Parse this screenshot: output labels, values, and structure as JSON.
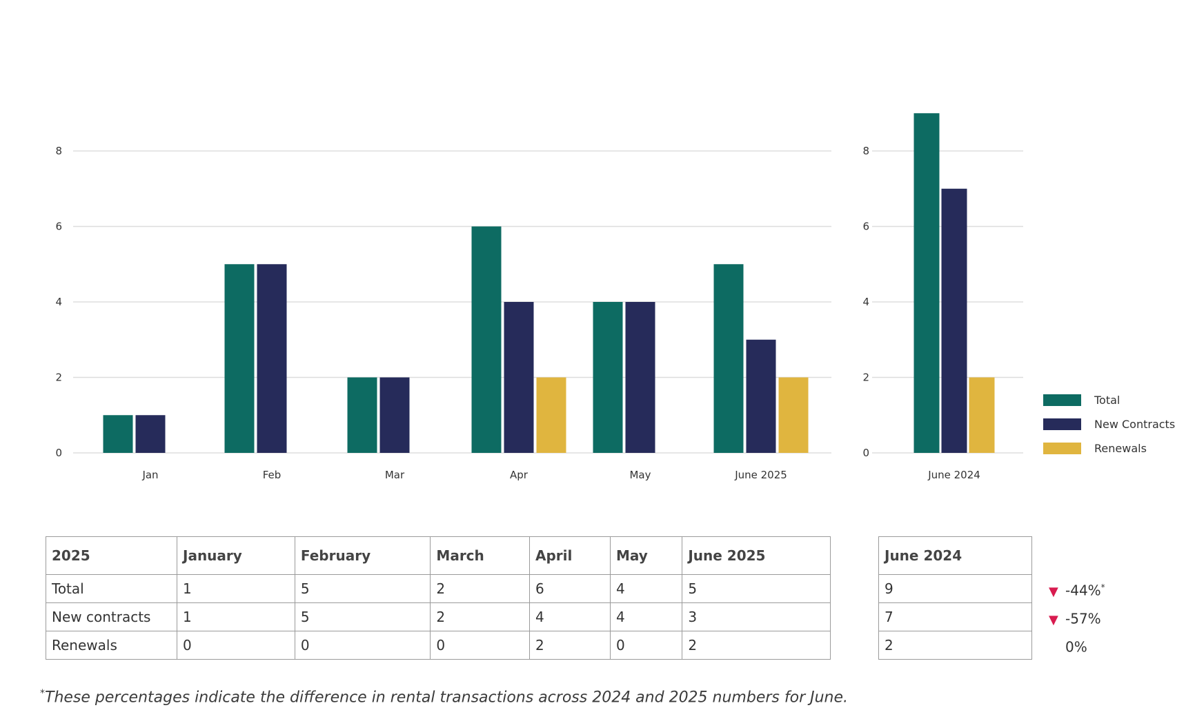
{
  "chart_data": [
    {
      "type": "bar",
      "categories": [
        "Jan",
        "Feb",
        "Mar",
        "Apr",
        "May",
        "June 2025"
      ],
      "series": [
        {
          "name": "Total",
          "color": "#0d6b62",
          "values": [
            1,
            5,
            2,
            6,
            4,
            5
          ]
        },
        {
          "name": "New Contracts",
          "color": "#262b5a",
          "values": [
            1,
            5,
            2,
            4,
            4,
            3
          ]
        },
        {
          "name": "Renewals",
          "color": "#e0b53f",
          "values": [
            0,
            0,
            0,
            2,
            0,
            2
          ]
        }
      ],
      "yticks": [
        0,
        2,
        4,
        6,
        8
      ],
      "ylim": [
        0,
        8
      ],
      "grid": true
    },
    {
      "type": "bar",
      "categories": [
        "June 2024"
      ],
      "series": [
        {
          "name": "Total",
          "color": "#0d6b62",
          "values": [
            9
          ]
        },
        {
          "name": "New Contracts",
          "color": "#262b5a",
          "values": [
            7
          ]
        },
        {
          "name": "Renewals",
          "color": "#e0b53f",
          "values": [
            2
          ]
        }
      ],
      "yticks": [
        0,
        2,
        4,
        6,
        8
      ],
      "ylim": [
        0,
        9
      ],
      "grid": true,
      "legend": "right"
    }
  ],
  "legend": [
    {
      "label": "Total",
      "color": "#0d6b62"
    },
    {
      "label": "New Contracts",
      "color": "#262b5a"
    },
    {
      "label": "Renewals",
      "color": "#e0b53f"
    }
  ],
  "table_2025": {
    "headers": [
      "2025",
      "January",
      "February",
      "March",
      "April",
      "May",
      "June 2025"
    ],
    "rows": [
      [
        "Total",
        "1",
        "5",
        "2",
        "6",
        "4",
        "5"
      ],
      [
        "New contracts",
        "1",
        "5",
        "2",
        "4",
        "4",
        "3"
      ],
      [
        "Renewals",
        "0",
        "0",
        "0",
        "2",
        "0",
        "2"
      ]
    ]
  },
  "table_2024": {
    "header": "June 2024",
    "rows": [
      "9",
      "7",
      "2"
    ]
  },
  "percentages": [
    {
      "arrow": "▼",
      "value": "-44%",
      "mark": "*"
    },
    {
      "arrow": "▼",
      "value": "-57%",
      "mark": ""
    },
    {
      "arrow": "",
      "value": "0%",
      "mark": ""
    }
  ],
  "footnote": {
    "mark": "*",
    "text": "These percentages indicate the difference in rental transactions across 2024 and 2025 numbers for June."
  }
}
